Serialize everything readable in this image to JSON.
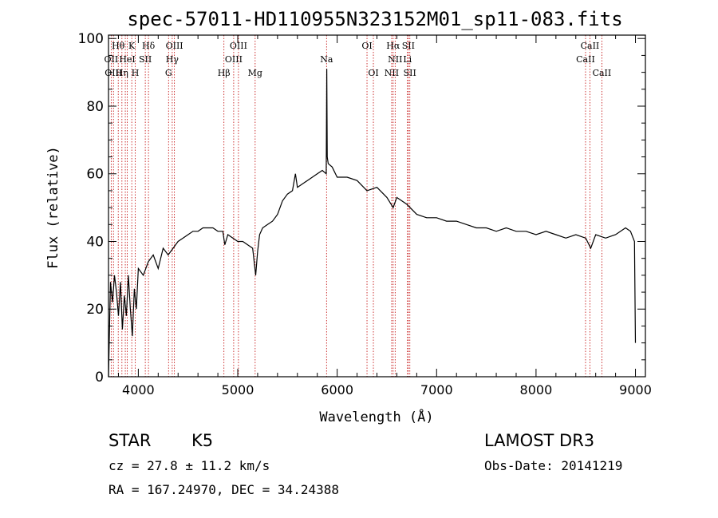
{
  "chart_data": {
    "type": "line",
    "title": "spec-57011-HD110955N323152M01_sp11-083.fits",
    "xlabel": "Wavelength (Å)",
    "ylabel": "Flux (relative)",
    "xlim": [
      3700,
      9100
    ],
    "ylim": [
      0,
      101
    ],
    "xticks": [
      4000,
      5000,
      6000,
      7000,
      8000,
      9000
    ],
    "yticks": [
      0,
      20,
      40,
      60,
      80,
      100
    ],
    "series": [
      {
        "name": "spectrum",
        "color": "#000000",
        "x": [
          3700,
          3720,
          3740,
          3760,
          3780,
          3800,
          3820,
          3840,
          3860,
          3880,
          3900,
          3920,
          3940,
          3960,
          3980,
          4000,
          4050,
          4100,
          4150,
          4200,
          4250,
          4300,
          4350,
          4400,
          4450,
          4500,
          4550,
          4600,
          4650,
          4700,
          4750,
          4800,
          4850,
          4870,
          4900,
          4950,
          5000,
          5050,
          5100,
          5150,
          5180,
          5200,
          5220,
          5250,
          5300,
          5350,
          5400,
          5450,
          5500,
          5550,
          5580,
          5600,
          5650,
          5700,
          5750,
          5800,
          5850,
          5890,
          5895,
          5900,
          5910,
          5950,
          6000,
          6100,
          6200,
          6300,
          6400,
          6500,
          6563,
          6600,
          6700,
          6800,
          6900,
          7000,
          7100,
          7200,
          7300,
          7400,
          7500,
          7600,
          7700,
          7800,
          7900,
          8000,
          8100,
          8200,
          8300,
          8400,
          8500,
          8550,
          8600,
          8700,
          8800,
          8900,
          8950,
          8990,
          9000
        ],
        "y": [
          0,
          28,
          22,
          30,
          25,
          18,
          28,
          14,
          24,
          18,
          30,
          20,
          12,
          26,
          20,
          32,
          30,
          34,
          36,
          32,
          38,
          36,
          38,
          40,
          41,
          42,
          43,
          43,
          44,
          44,
          44,
          43,
          43,
          39,
          42,
          41,
          40,
          40,
          39,
          38,
          30,
          37,
          42,
          44,
          45,
          46,
          48,
          52,
          54,
          55,
          60,
          56,
          57,
          58,
          59,
          60,
          61,
          60,
          91,
          65,
          63,
          62,
          59,
          59,
          58,
          55,
          56,
          53,
          50,
          53,
          51,
          48,
          47,
          47,
          46,
          46,
          45,
          44,
          44,
          43,
          44,
          43,
          43,
          42,
          43,
          42,
          41,
          42,
          41,
          38,
          42,
          41,
          42,
          44,
          43,
          40,
          10
        ]
      }
    ],
    "annotations": {
      "lines": [
        {
          "x": 3727,
          "color": "#c00000"
        },
        {
          "x": 3750,
          "color": "#c00000"
        },
        {
          "x": 3798,
          "color": "#c00000"
        },
        {
          "x": 3835,
          "color": "#c00000"
        },
        {
          "x": 3869,
          "color": "#c00000"
        },
        {
          "x": 3889,
          "color": "#c00000"
        },
        {
          "x": 3934,
          "color": "#c00000"
        },
        {
          "x": 3969,
          "color": "#c00000"
        },
        {
          "x": 4070,
          "color": "#c00000"
        },
        {
          "x": 4102,
          "color": "#c00000"
        },
        {
          "x": 4304,
          "color": "#c00000"
        },
        {
          "x": 4341,
          "color": "#c00000"
        },
        {
          "x": 4363,
          "color": "#c00000"
        },
        {
          "x": 4861,
          "color": "#c00000"
        },
        {
          "x": 4959,
          "color": "#c00000"
        },
        {
          "x": 5007,
          "color": "#c00000"
        },
        {
          "x": 5175,
          "color": "#c00000"
        },
        {
          "x": 5893,
          "color": "#c00000"
        },
        {
          "x": 6300,
          "color": "#c00000"
        },
        {
          "x": 6364,
          "color": "#c00000"
        },
        {
          "x": 6548,
          "color": "#c00000"
        },
        {
          "x": 6563,
          "color": "#c00000"
        },
        {
          "x": 6583,
          "color": "#c00000"
        },
        {
          "x": 6707,
          "color": "#c00000"
        },
        {
          "x": 6716,
          "color": "#c00000"
        },
        {
          "x": 6731,
          "color": "#c00000"
        },
        {
          "x": 8498,
          "color": "#c00000"
        },
        {
          "x": 8542,
          "color": "#c00000"
        },
        {
          "x": 8662,
          "color": "#c00000"
        }
      ],
      "labels": [
        {
          "text": "Hθ",
          "x": 3798,
          "row": 1
        },
        {
          "text": "K",
          "x": 3934,
          "row": 1
        },
        {
          "text": "Hδ",
          "x": 4102,
          "row": 1
        },
        {
          "text": "OIII",
          "x": 4363,
          "row": 1
        },
        {
          "text": "OIII",
          "x": 5007,
          "row": 1
        },
        {
          "text": "OI",
          "x": 6300,
          "row": 1
        },
        {
          "text": "Hα",
          "x": 6563,
          "row": 1
        },
        {
          "text": "SII",
          "x": 6716,
          "row": 1
        },
        {
          "text": "CaII",
          "x": 8542,
          "row": 1
        },
        {
          "text": "OII",
          "x": 3727,
          "row": 2
        },
        {
          "text": "HeI",
          "x": 3889,
          "row": 2
        },
        {
          "text": "SII",
          "x": 4070,
          "row": 2
        },
        {
          "text": "Hγ",
          "x": 4341,
          "row": 2
        },
        {
          "text": "OIII",
          "x": 4959,
          "row": 2
        },
        {
          "text": "Na",
          "x": 5893,
          "row": 2
        },
        {
          "text": "NII",
          "x": 6583,
          "row": 2
        },
        {
          "text": "Li",
          "x": 6707,
          "row": 2
        },
        {
          "text": "CaII",
          "x": 8498,
          "row": 2
        },
        {
          "text": "OIII",
          "x": 3750,
          "row": 3
        },
        {
          "text": "Hη",
          "x": 3835,
          "row": 3
        },
        {
          "text": "H",
          "x": 3969,
          "row": 3
        },
        {
          "text": "G",
          "x": 4304,
          "row": 3
        },
        {
          "text": "Hβ",
          "x": 4861,
          "row": 3
        },
        {
          "text": "Mg",
          "x": 5175,
          "row": 3
        },
        {
          "text": "OI",
          "x": 6364,
          "row": 3
        },
        {
          "text": "NII",
          "x": 6548,
          "row": 3
        },
        {
          "text": "SII",
          "x": 6731,
          "row": 3
        },
        {
          "text": "CaII",
          "x": 8662,
          "row": 3
        }
      ]
    }
  },
  "info": {
    "class": "STAR",
    "subclass": "K5",
    "survey": "LAMOST DR3",
    "cz": "cz = 27.8 ± 11.2 km/s",
    "obs_date": "Obs-Date: 20141219",
    "coords": "RA = 167.24970, DEC =  34.24388"
  }
}
